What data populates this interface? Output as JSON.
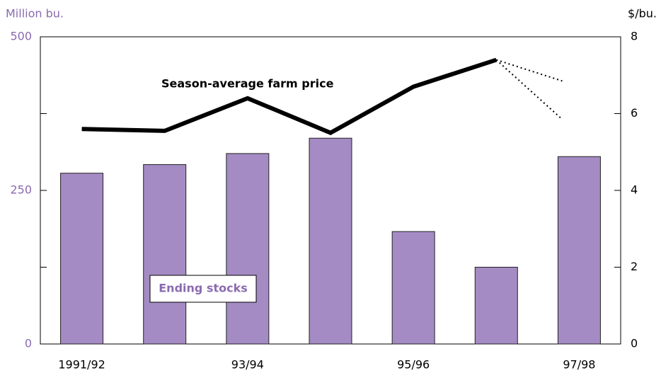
{
  "chart_data": {
    "type": "bar",
    "y_label": "Million bu.",
    "y2_label": "$/bu.",
    "categories": [
      "1991/92",
      null,
      "93/94",
      null,
      "95/96",
      null,
      "97/98"
    ],
    "series": [
      {
        "name": "Ending stocks",
        "color": "#a58bc4",
        "values": [
          278,
          292,
          310,
          335,
          183,
          125,
          305
        ]
      },
      {
        "name": "Season-average farm price",
        "color": "#000000",
        "axis": "y2",
        "type": "line",
        "values": [
          5.6,
          5.55,
          6.4,
          5.5,
          6.7,
          7.4,
          null
        ],
        "projected_values": [
          5.85,
          6.85
        ]
      }
    ],
    "ylim": [
      0,
      500
    ],
    "yticks": [
      0,
      250,
      500
    ],
    "yminor_ticks": [
      125,
      375
    ],
    "y2lim": [
      0,
      8
    ],
    "y2ticks": [
      0,
      2,
      4,
      6,
      8
    ]
  }
}
